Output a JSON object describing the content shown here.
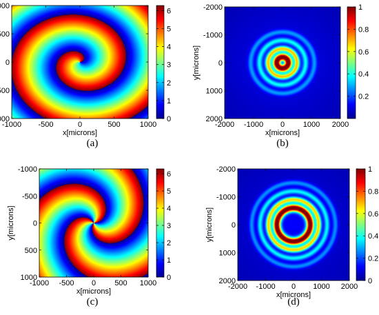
{
  "colorscale": [
    "#00008f",
    "#0000ff",
    "#0080ff",
    "#00ffff",
    "#80ff80",
    "#ffff00",
    "#ff8000",
    "#ff0000",
    "#800000"
  ],
  "chart_data": [
    {
      "type": "heatmap",
      "caption": "(a)",
      "field": "spiral-phase",
      "charge": 1,
      "twist": 1.5,
      "xlabel": "x[microns]",
      "ylabel": "y[microns]",
      "xlim": [
        -1000,
        1000
      ],
      "ylim": [
        -1000,
        1000
      ],
      "y_inverted": true,
      "xticks": [
        -1000,
        -500,
        0,
        500,
        1000
      ],
      "yticks": [
        -1000,
        -500,
        0,
        500,
        1000
      ],
      "colorbar": {
        "range": [
          0,
          6.2832
        ],
        "ticks": [
          0,
          1,
          2,
          3,
          4,
          5,
          6
        ]
      }
    },
    {
      "type": "heatmap",
      "caption": "(b)",
      "field": "ring-intensity",
      "ring_radius": 200,
      "xlabel": "x[microns]",
      "ylabel": "y[microns]",
      "xlim": [
        -2000,
        2000
      ],
      "ylim": [
        -2000,
        2000
      ],
      "y_inverted": true,
      "xticks": [
        -2000,
        -1000,
        0,
        1000,
        2000
      ],
      "yticks": [
        -2000,
        -1000,
        0,
        1000,
        2000
      ],
      "colorbar": {
        "range": [
          0,
          1
        ],
        "ticks": [
          0.2,
          0.4,
          0.6,
          0.8,
          1
        ]
      }
    },
    {
      "type": "heatmap",
      "caption": "(c)",
      "field": "spiral-phase",
      "charge": 3,
      "twist": 1.2,
      "xlabel": "x[microns]",
      "ylabel": "y[microns]",
      "xlim": [
        -1000,
        1000
      ],
      "ylim": [
        -1000,
        1000
      ],
      "y_inverted": true,
      "xticks": [
        -1000,
        -500,
        0,
        500,
        1000
      ],
      "yticks": [
        -1000,
        -500,
        0,
        500,
        1000
      ],
      "colorbar": {
        "range": [
          0,
          6.2832
        ],
        "ticks": [
          0,
          1,
          2,
          3,
          4,
          5,
          6
        ]
      }
    },
    {
      "type": "heatmap",
      "caption": "(d)",
      "field": "ring-intensity",
      "ring_radius": 600,
      "xlabel": "x[microns]",
      "ylabel": "y[microns]",
      "xlim": [
        -2000,
        2000
      ],
      "ylim": [
        -2000,
        2000
      ],
      "y_inverted": true,
      "xticks": [
        -2000,
        -1000,
        0,
        1000,
        2000
      ],
      "yticks": [
        -2000,
        -1000,
        0,
        1000,
        2000
      ],
      "colorbar": {
        "range": [
          0,
          1
        ],
        "ticks": [
          0,
          0.2,
          0.4,
          0.6,
          0.8,
          1
        ]
      }
    }
  ]
}
